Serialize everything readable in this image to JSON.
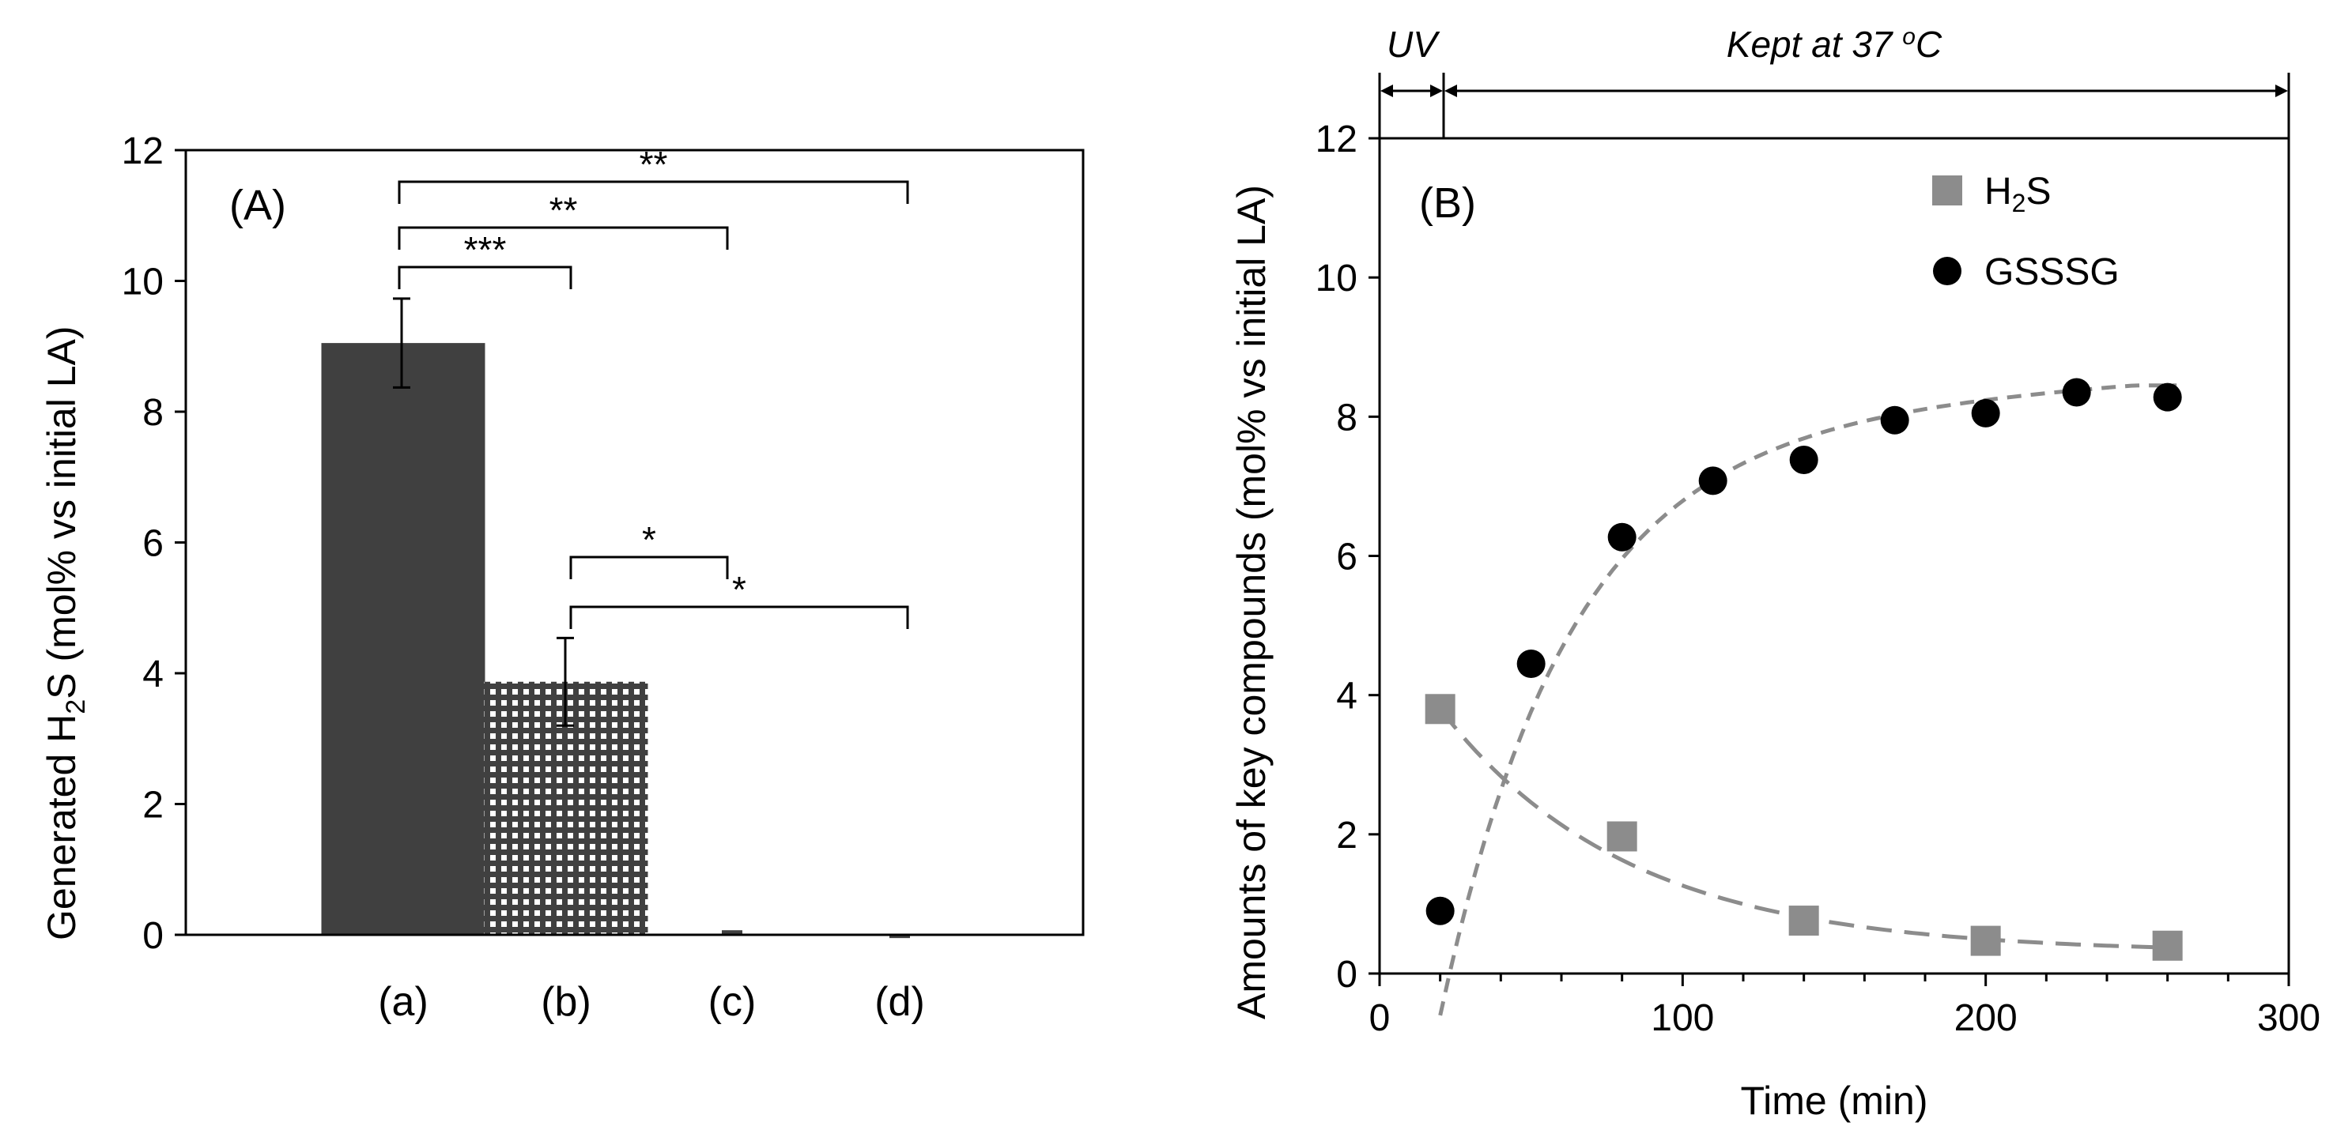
{
  "chart_data": [
    {
      "panel": "(A)",
      "type": "bar",
      "ylabel_parts": [
        "Generated H",
        "2",
        "S (mol% vs initial LA)"
      ],
      "ylim": [
        0,
        12
      ],
      "yticks": [
        0,
        2,
        4,
        6,
        8,
        10,
        12
      ],
      "categories": [
        "(a)",
        "(b)",
        "(c)",
        "(d)"
      ],
      "values": [
        9.05,
        3.87,
        0.07,
        -0.05
      ],
      "errors": [
        0.68,
        0.67,
        0,
        0
      ],
      "bar_styles": [
        "solid",
        "dotted",
        "solid",
        "solid"
      ],
      "bar_color": "#404040",
      "significance": [
        {
          "from": "(a)",
          "to": "(b)",
          "label": "***"
        },
        {
          "from": "(a)",
          "to": "(c)",
          "label": "**"
        },
        {
          "from": "(a)",
          "to": "(d)",
          "label": "**"
        },
        {
          "from": "(b)",
          "to": "(c)",
          "label": "*"
        },
        {
          "from": "(b)",
          "to": "(d)",
          "label": "*"
        }
      ]
    },
    {
      "panel": "(B)",
      "type": "scatter",
      "xlabel": "Time (min)",
      "ylabel": "Amounts of key compounds (mol% vs initial LA)",
      "xlim": [
        0,
        300
      ],
      "ylim": [
        0,
        12
      ],
      "xticks": [
        0,
        100,
        200,
        300
      ],
      "yticks": [
        0,
        2,
        4,
        6,
        8,
        10,
        12
      ],
      "grid": false,
      "legend_position": "top-right",
      "series": [
        {
          "name_parts": [
            "H",
            "2",
            "S"
          ],
          "marker": "square",
          "color": "#8c8c8c",
          "x": [
            20,
            80,
            140,
            200,
            260
          ],
          "y": [
            3.8,
            1.97,
            0.76,
            0.47,
            0.4
          ],
          "errors": [
            0,
            0,
            0.1,
            0,
            0
          ],
          "fit": "exponential decay (long-dash)"
        },
        {
          "name": "GSSSG",
          "marker": "circle",
          "color": "#000000",
          "x": [
            20,
            50,
            80,
            110,
            140,
            170,
            200,
            230,
            260
          ],
          "y": [
            0.9,
            4.45,
            6.27,
            7.08,
            7.38,
            7.95,
            8.05,
            8.35,
            8.28
          ],
          "fit": "saturation curve (dash)"
        }
      ],
      "annotations": {
        "uv_label": "UV",
        "uv_range": [
          0,
          15
        ],
        "kept_label": "Kept at 37 ",
        "kept_sup": "o",
        "kept_unit": "C",
        "kept_range": [
          15,
          300
        ]
      },
      "fit_line_color": "#8c8c8c"
    }
  ]
}
